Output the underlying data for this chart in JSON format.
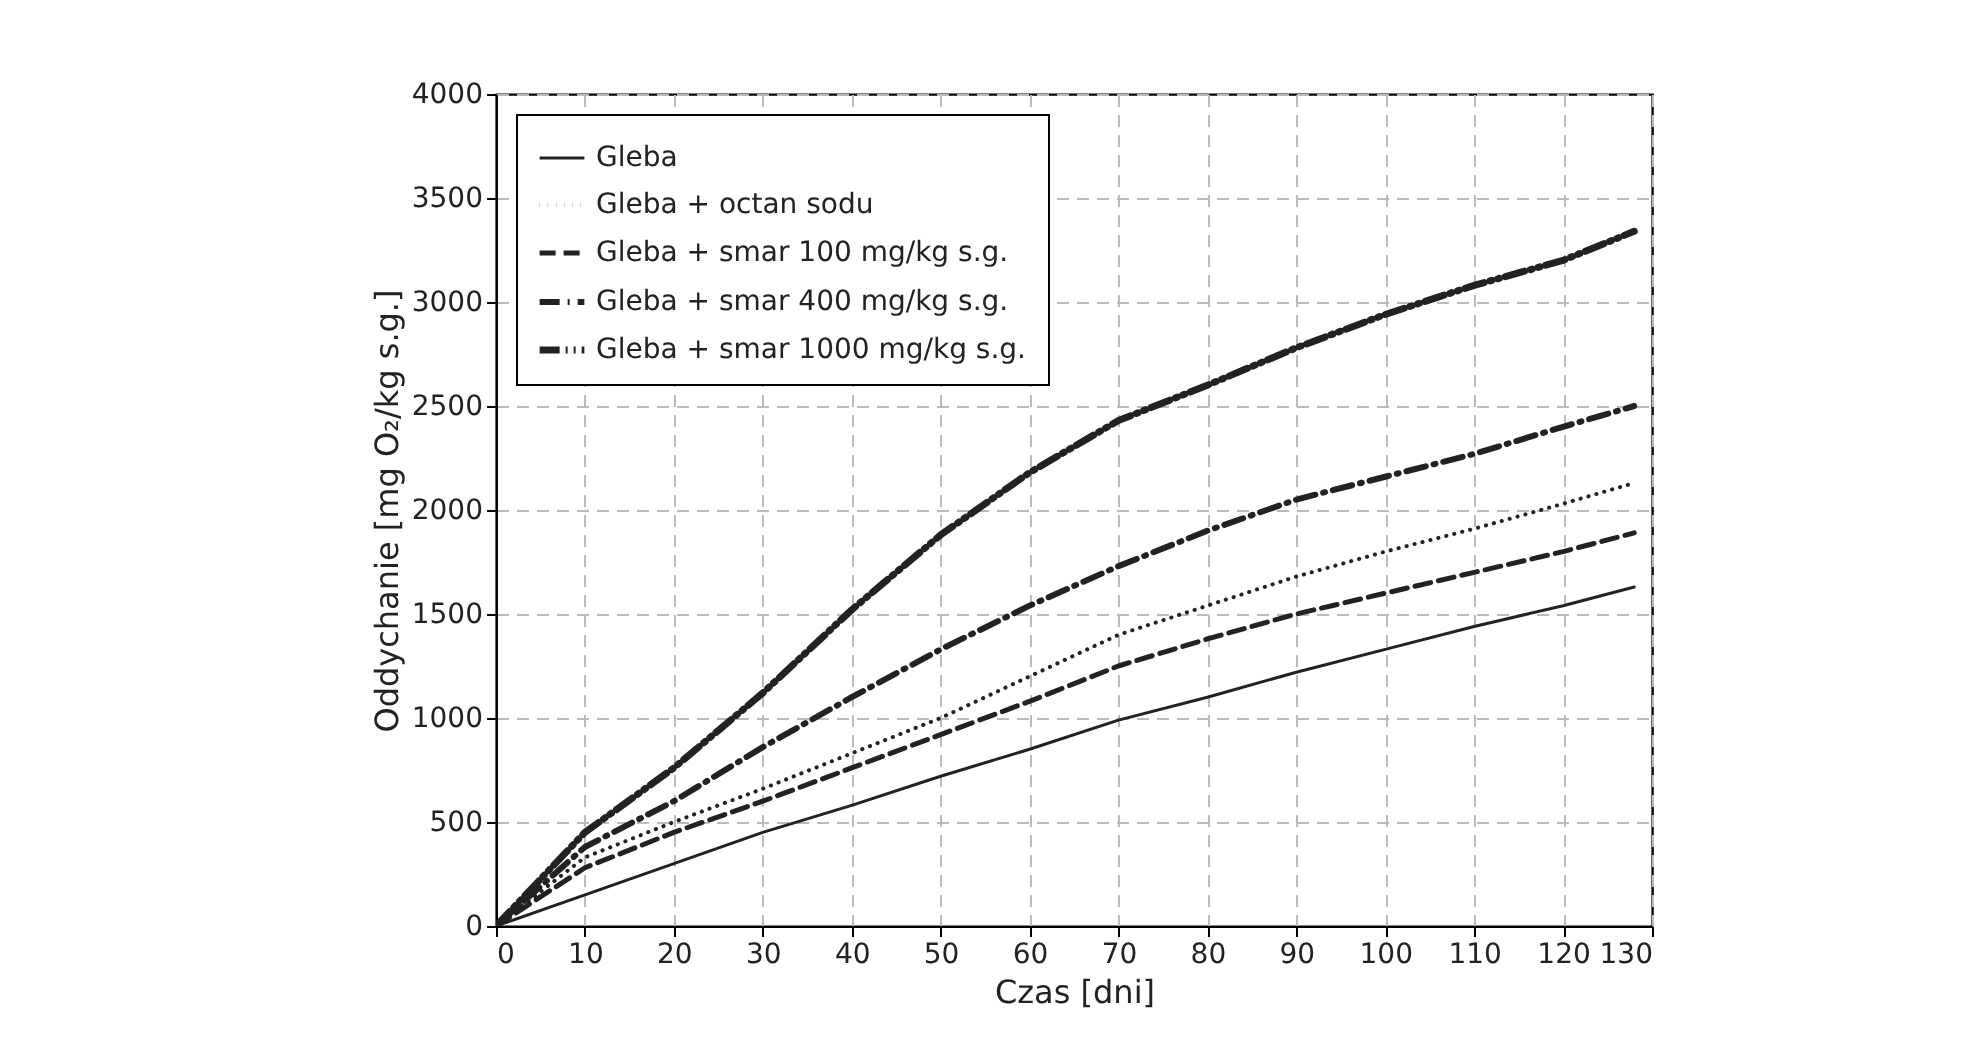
{
  "chart_data": {
    "type": "line",
    "xlabel": "Czas [dni]",
    "ylabel": "Oddychanie [mg O₂/kg s.g.]",
    "x": [
      0,
      10,
      20,
      30,
      40,
      50,
      60,
      70,
      80,
      90,
      100,
      110,
      120,
      128
    ],
    "series": [
      {
        "name": "Gleba",
        "color": "#222222",
        "line_style": "solid",
        "values": [
          0,
          150,
          300,
          450,
          580,
          720,
          850,
          990,
          1100,
          1220,
          1330,
          1440,
          1540,
          1630
        ]
      },
      {
        "name": "Gleba + octan sodu",
        "color": "#222222",
        "line_style": "dotted",
        "values": [
          0,
          330,
          500,
          660,
          830,
          1000,
          1200,
          1400,
          1540,
          1680,
          1800,
          1910,
          2030,
          2130
        ]
      },
      {
        "name": "Gleba + smar 100 mg/kg s.g.",
        "color": "#222222",
        "line_style": "dashed",
        "values": [
          0,
          280,
          450,
          600,
          760,
          920,
          1080,
          1250,
          1380,
          1500,
          1600,
          1700,
          1800,
          1890
        ]
      },
      {
        "name": "Gleba + smar 400 mg/kg s.g.",
        "color": "#222222",
        "line_style": "dashdot",
        "values": [
          0,
          380,
          600,
          860,
          1100,
          1330,
          1540,
          1730,
          1900,
          2050,
          2160,
          2270,
          2400,
          2500
        ]
      },
      {
        "name": "Gleba + smar 1000 mg/kg s.g.",
        "color": "#222222",
        "line_style": "dashdotdot",
        "values": [
          0,
          450,
          760,
          1120,
          1520,
          1880,
          2180,
          2430,
          2600,
          2780,
          2940,
          3080,
          3200,
          3340
        ]
      }
    ],
    "xlim": [
      0,
      130
    ],
    "xticks": [
      0,
      10,
      20,
      30,
      40,
      50,
      60,
      70,
      80,
      90,
      100,
      110,
      120,
      130
    ],
    "ylim": [
      0,
      4000
    ],
    "yticks": [
      0,
      500,
      1000,
      1500,
      2000,
      2500,
      3000,
      3500,
      4000
    ],
    "grid": true,
    "legend": "top left"
  }
}
